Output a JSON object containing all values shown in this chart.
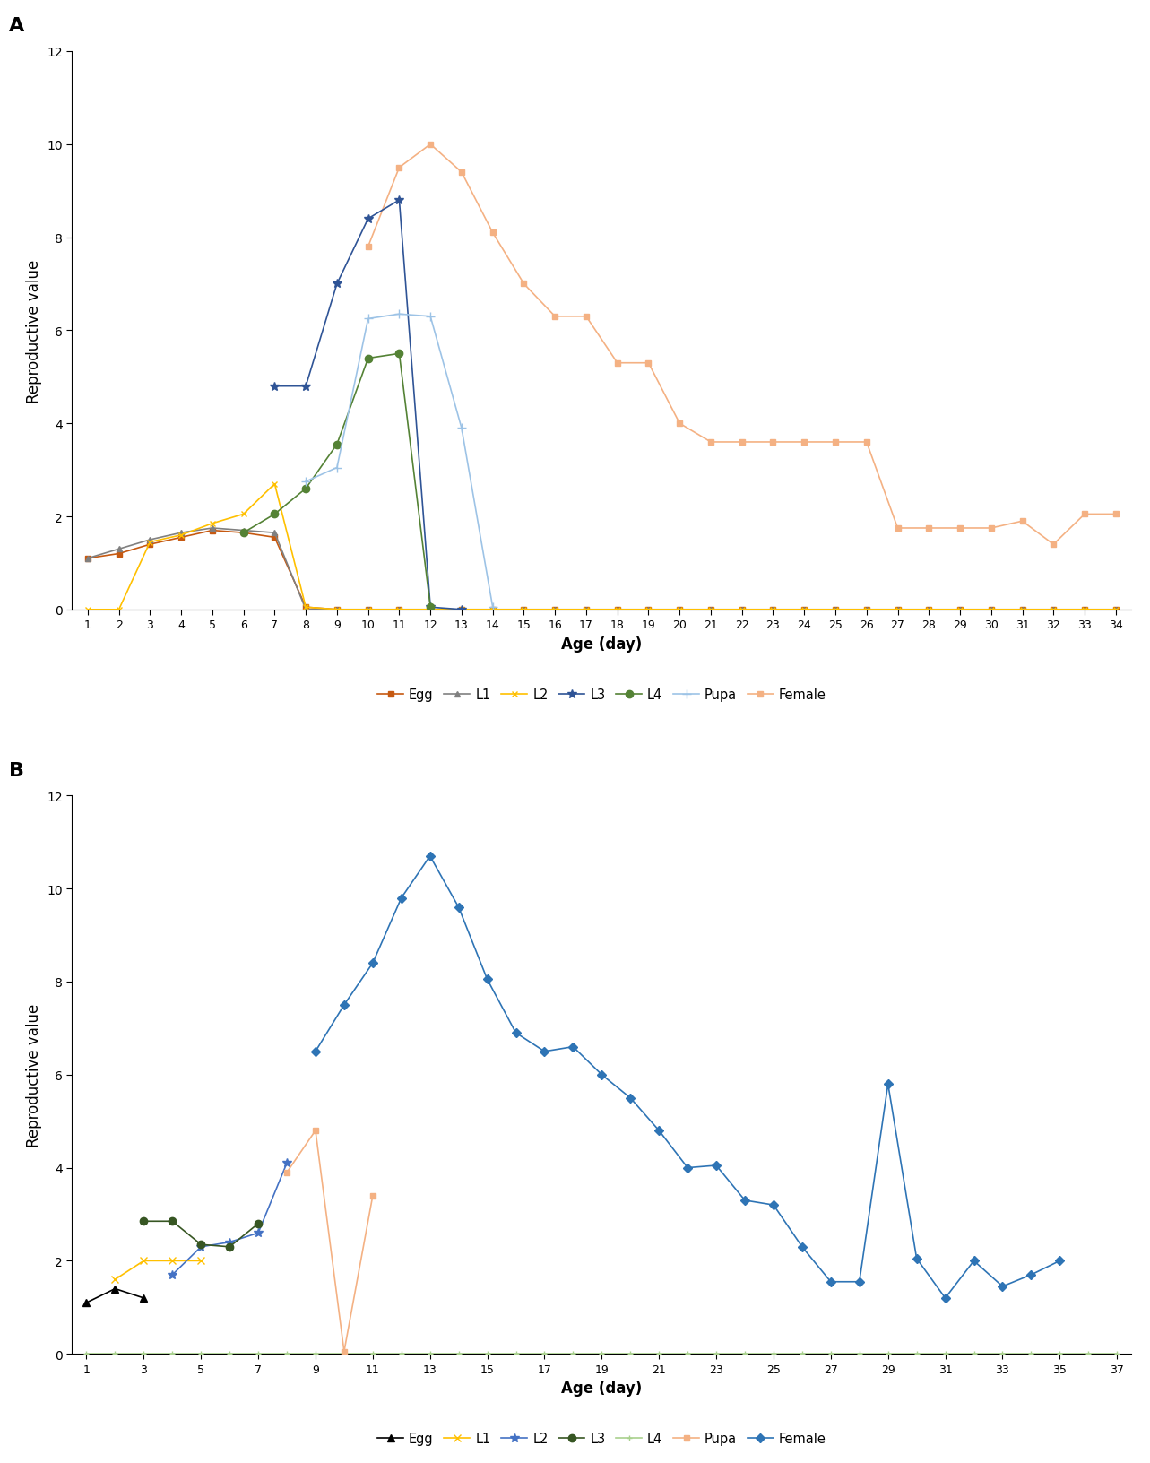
{
  "panel_A": {
    "title": "A",
    "xlabel": "Age (day)",
    "ylabel": "Reproductive value",
    "ylim": [
      0,
      12
    ],
    "yticks": [
      0,
      2,
      4,
      6,
      8,
      10,
      12
    ],
    "series": {
      "Egg": {
        "x": [
          1,
          2,
          3,
          4,
          5,
          6,
          7,
          8,
          9,
          10,
          11,
          12,
          13,
          14,
          15,
          16,
          17,
          18,
          19,
          20,
          21,
          22,
          23,
          24,
          25,
          26,
          27,
          28,
          29,
          30,
          31,
          32,
          33,
          34
        ],
        "y": [
          1.1,
          1.2,
          1.4,
          1.55,
          1.7,
          1.65,
          1.55,
          0.05,
          0.0,
          0.0,
          0.0,
          0.0,
          0.0,
          0.0,
          0.0,
          0.0,
          0.0,
          0.0,
          0.0,
          0.0,
          0.0,
          0.0,
          0.0,
          0.0,
          0.0,
          0.0,
          0.0,
          0.0,
          0.0,
          0.0,
          0.0,
          0.0,
          0.0,
          0.0
        ],
        "color": "#C65911",
        "marker": "s",
        "markersize": 4,
        "linewidth": 1.2,
        "zorder": 3
      },
      "L1": {
        "x": [
          1,
          2,
          3,
          4,
          5,
          6,
          7,
          8,
          9,
          10,
          11,
          12,
          13,
          14,
          15,
          16,
          17,
          18,
          19,
          20,
          21,
          22,
          23,
          24,
          25,
          26,
          27,
          28,
          29,
          30,
          31,
          32,
          33,
          34
        ],
        "y": [
          1.1,
          1.3,
          1.5,
          1.65,
          1.75,
          1.7,
          1.65,
          0.0,
          0.0,
          0.0,
          0.0,
          0.0,
          0.0,
          0.0,
          0.0,
          0.0,
          0.0,
          0.0,
          0.0,
          0.0,
          0.0,
          0.0,
          0.0,
          0.0,
          0.0,
          0.0,
          0.0,
          0.0,
          0.0,
          0.0,
          0.0,
          0.0,
          0.0,
          0.0
        ],
        "color": "#808080",
        "marker": "^",
        "markersize": 5,
        "linewidth": 1.2,
        "zorder": 3
      },
      "L2": {
        "x": [
          1,
          2,
          3,
          4,
          5,
          6,
          7,
          8,
          9,
          10,
          11,
          12,
          13,
          14,
          15,
          16,
          17,
          18,
          19,
          20,
          21,
          22,
          23,
          24,
          25,
          26,
          27,
          28,
          29,
          30,
          31,
          32,
          33,
          34
        ],
        "y": [
          0.0,
          0.0,
          1.45,
          1.6,
          1.85,
          2.05,
          2.7,
          0.05,
          0.0,
          0.0,
          0.0,
          0.0,
          0.0,
          0.0,
          0.0,
          0.0,
          0.0,
          0.0,
          0.0,
          0.0,
          0.0,
          0.0,
          0.0,
          0.0,
          0.0,
          0.0,
          0.0,
          0.0,
          0.0,
          0.0,
          0.0,
          0.0,
          0.0,
          0.0
        ],
        "color": "#FFC000",
        "marker": "x",
        "markersize": 5,
        "linewidth": 1.2,
        "zorder": 3
      },
      "L3": {
        "x": [
          7,
          8,
          9,
          10,
          11,
          12,
          13
        ],
        "y": [
          4.8,
          4.8,
          7.0,
          8.4,
          8.8,
          0.05,
          0.0
        ],
        "color": "#2F5496",
        "marker": "*",
        "markersize": 7,
        "linewidth": 1.2,
        "zorder": 3
      },
      "L4": {
        "x": [
          6,
          7,
          8,
          9,
          10,
          11,
          12
        ],
        "y": [
          1.65,
          2.05,
          2.6,
          3.55,
          5.4,
          5.5,
          0.05
        ],
        "color": "#548235",
        "marker": "o",
        "markersize": 6,
        "linewidth": 1.2,
        "zorder": 3
      },
      "Pupa": {
        "x": [
          8,
          9,
          10,
          11,
          12,
          13,
          14
        ],
        "y": [
          2.75,
          3.05,
          6.25,
          6.35,
          6.3,
          3.9,
          0.05
        ],
        "color": "#9DC3E6",
        "marker": "+",
        "markersize": 7,
        "linewidth": 1.2,
        "zorder": 3
      },
      "Female": {
        "x": [
          10,
          11,
          12,
          13,
          14,
          15,
          16,
          17,
          18,
          19,
          20,
          21,
          22,
          23,
          24,
          25,
          26,
          27,
          28,
          29,
          30,
          31,
          32,
          33,
          34
        ],
        "y": [
          7.8,
          9.5,
          10.0,
          9.4,
          8.1,
          7.0,
          6.3,
          6.3,
          5.3,
          5.3,
          4.0,
          3.6,
          3.6,
          3.6,
          3.6,
          3.6,
          3.6,
          1.75,
          1.75,
          1.75,
          1.75,
          1.9,
          1.4,
          2.05,
          2.05
        ],
        "color": "#F4B183",
        "marker": "s",
        "markersize": 4,
        "linewidth": 1.2,
        "zorder": 2
      }
    },
    "xticks": [
      1,
      2,
      3,
      4,
      5,
      6,
      7,
      8,
      9,
      10,
      11,
      12,
      13,
      14,
      15,
      16,
      17,
      18,
      19,
      20,
      21,
      22,
      23,
      24,
      25,
      26,
      27,
      28,
      29,
      30,
      31,
      32,
      33,
      34
    ],
    "xlim": [
      0.5,
      34.5
    ],
    "legend_order": [
      "Egg",
      "L1",
      "L2",
      "L3",
      "L4",
      "Pupa",
      "Female"
    ]
  },
  "panel_B": {
    "title": "B",
    "xlabel": "Age (day)",
    "ylabel": "Reproductive value",
    "ylim": [
      0,
      12
    ],
    "yticks": [
      0,
      2,
      4,
      6,
      8,
      10,
      12
    ],
    "series": {
      "Egg": {
        "x": [
          1,
          2,
          3
        ],
        "y": [
          1.1,
          1.4,
          1.2
        ],
        "color": "#000000",
        "marker": "^",
        "markersize": 6,
        "linewidth": 1.2,
        "zorder": 3
      },
      "L1": {
        "x": [
          2,
          3,
          4,
          5
        ],
        "y": [
          1.6,
          2.0,
          2.0,
          2.0
        ],
        "color": "#FFC000",
        "marker": "x",
        "markersize": 6,
        "linewidth": 1.2,
        "zorder": 3
      },
      "L2": {
        "x": [
          4,
          5,
          6,
          7,
          8
        ],
        "y": [
          1.7,
          2.3,
          2.4,
          2.6,
          4.1
        ],
        "color": "#4472C4",
        "marker": "*",
        "markersize": 7,
        "linewidth": 1.2,
        "zorder": 3
      },
      "L3": {
        "x": [
          3,
          4,
          5,
          6,
          7
        ],
        "y": [
          2.85,
          2.85,
          2.35,
          2.3,
          2.8
        ],
        "color": "#375623",
        "marker": "o",
        "markersize": 6,
        "linewidth": 1.2,
        "zorder": 3
      },
      "L4": {
        "x": [
          1,
          2,
          3,
          4,
          5,
          6,
          7,
          8,
          9,
          10,
          11,
          12,
          13,
          14,
          15,
          16,
          17,
          18,
          19,
          20,
          21,
          22,
          23,
          24,
          25,
          26,
          27,
          28,
          29,
          30,
          31,
          32,
          33,
          34,
          35,
          36,
          37
        ],
        "y": [
          0.0,
          0.0,
          0.0,
          0.0,
          0.0,
          0.0,
          0.0,
          0.0,
          0.0,
          0.0,
          0.0,
          0.0,
          0.0,
          0.0,
          0.0,
          0.0,
          0.0,
          0.0,
          0.0,
          0.0,
          0.0,
          0.0,
          0.0,
          0.0,
          0.0,
          0.0,
          0.0,
          0.0,
          0.0,
          0.0,
          0.0,
          0.0,
          0.0,
          0.0,
          0.0,
          0.0,
          0.0
        ],
        "color": "#A9D18E",
        "marker": "+",
        "markersize": 5,
        "linewidth": 1.2,
        "zorder": 3
      },
      "Pupa": {
        "x": [
          8,
          9,
          10,
          11
        ],
        "y": [
          3.9,
          4.8,
          0.05,
          3.4
        ],
        "color": "#F4B183",
        "marker": "s",
        "markersize": 4,
        "linewidth": 1.2,
        "zorder": 3
      },
      "Female": {
        "x": [
          9,
          10,
          11,
          12,
          13,
          14,
          15,
          16,
          17,
          18,
          19,
          20,
          21,
          22,
          23,
          24,
          25,
          26,
          27,
          28,
          29,
          30,
          31,
          32,
          33,
          34,
          35
        ],
        "y": [
          6.5,
          7.5,
          8.4,
          9.8,
          10.7,
          9.6,
          8.05,
          6.9,
          6.5,
          6.6,
          6.0,
          5.5,
          4.8,
          4.0,
          4.05,
          3.3,
          3.2,
          2.3,
          1.55,
          1.55,
          5.8,
          2.05,
          1.2,
          2.0,
          1.45,
          1.7,
          2.0
        ],
        "color": "#2E74B5",
        "marker": "D",
        "markersize": 5,
        "linewidth": 1.2,
        "zorder": 2
      }
    },
    "xticks": [
      1,
      3,
      5,
      7,
      9,
      11,
      13,
      15,
      17,
      19,
      21,
      23,
      25,
      27,
      29,
      31,
      33,
      35,
      37
    ],
    "xlim": [
      0.5,
      37.5
    ],
    "legend_order": [
      "Egg",
      "L1",
      "L2",
      "L3",
      "L4",
      "Pupa",
      "Female"
    ]
  }
}
